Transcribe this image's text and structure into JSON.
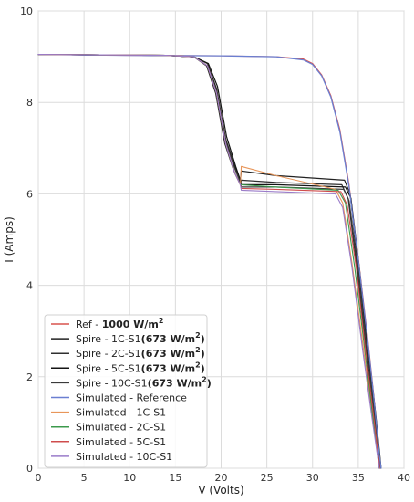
{
  "chart_data": {
    "type": "line",
    "title": "",
    "xlabel": "V (Volts)",
    "ylabel": "I (Amps)",
    "xlim": [
      0,
      40
    ],
    "ylim": [
      0,
      10
    ],
    "xticks": [
      "0",
      "5",
      "10",
      "15",
      "20",
      "25",
      "30",
      "35",
      "40"
    ],
    "yticks": [
      "0",
      "2",
      "4",
      "6",
      "8",
      "10"
    ],
    "grid": true,
    "legend_position": "lower-left",
    "series": [
      {
        "name": "Ref - ",
        "bold": "1000 W/m",
        "sup": "2",
        "color": "#d9534f",
        "width": 1.1,
        "points": [
          [
            0,
            9.05
          ],
          [
            10,
            9.03
          ],
          [
            20,
            9.02
          ],
          [
            26,
            9.0
          ],
          [
            29,
            8.95
          ],
          [
            30,
            8.85
          ],
          [
            31,
            8.6
          ],
          [
            32,
            8.15
          ],
          [
            33,
            7.4
          ],
          [
            34,
            6.2
          ],
          [
            35,
            4.6
          ],
          [
            36,
            2.9
          ],
          [
            36.8,
            1.4
          ],
          [
            37.3,
            0.3
          ],
          [
            37.45,
            0
          ]
        ]
      },
      {
        "name": "Spire - 1C-S1",
        "bold": "(673 W/m",
        "sup": "2",
        "bold_end": ")",
        "color": "#222222",
        "width": 1.2,
        "points": [
          [
            0,
            9.05
          ],
          [
            14,
            9.03
          ],
          [
            17,
            9.0
          ],
          [
            18.5,
            8.85
          ],
          [
            19.5,
            8.3
          ],
          [
            20.5,
            7.2
          ],
          [
            21.5,
            6.6
          ],
          [
            22.1,
            6.3
          ],
          [
            22.2,
            6.5
          ],
          [
            26,
            6.4
          ],
          [
            33.5,
            6.3
          ],
          [
            34.1,
            6.0
          ],
          [
            35,
            4.4
          ],
          [
            36,
            2.6
          ],
          [
            36.8,
            1.2
          ],
          [
            37.4,
            0
          ]
        ]
      },
      {
        "name": "Spire - 2C-S1",
        "bold": "(673 W/m",
        "sup": "2",
        "bold_end": ")",
        "color": "#2f2f2f",
        "width": 1.2,
        "points": [
          [
            0,
            9.05
          ],
          [
            14,
            9.03
          ],
          [
            17,
            9.0
          ],
          [
            18.4,
            8.8
          ],
          [
            19.4,
            8.2
          ],
          [
            20.4,
            7.1
          ],
          [
            21.4,
            6.5
          ],
          [
            22.1,
            6.2
          ],
          [
            22.2,
            6.3
          ],
          [
            26,
            6.25
          ],
          [
            33.2,
            6.2
          ],
          [
            33.9,
            5.9
          ],
          [
            34.9,
            4.3
          ],
          [
            35.9,
            2.5
          ],
          [
            36.7,
            1.1
          ],
          [
            37.3,
            0
          ]
        ]
      },
      {
        "name": "Spire - 5C-S1",
        "bold": "(673 W/m",
        "sup": "2",
        "bold_end": ")",
        "color": "#141414",
        "width": 1.2,
        "points": [
          [
            0,
            9.05
          ],
          [
            14,
            9.03
          ],
          [
            17,
            9.0
          ],
          [
            18.6,
            8.85
          ],
          [
            19.6,
            8.35
          ],
          [
            20.6,
            7.25
          ],
          [
            21.6,
            6.6
          ],
          [
            22.1,
            6.3
          ],
          [
            22.2,
            6.2
          ],
          [
            26,
            6.2
          ],
          [
            33.6,
            6.15
          ],
          [
            34.2,
            5.9
          ],
          [
            35.1,
            4.4
          ],
          [
            36.1,
            2.6
          ],
          [
            36.9,
            1.2
          ],
          [
            37.5,
            0
          ]
        ]
      },
      {
        "name": "Spire - 10C-S1",
        "bold": "(673 W/m",
        "sup": "2",
        "bold_end": ")",
        "color": "#3a3a3a",
        "width": 1.2,
        "points": [
          [
            0,
            9.05
          ],
          [
            14,
            9.03
          ],
          [
            17,
            9.0
          ],
          [
            18.5,
            8.8
          ],
          [
            19.5,
            8.25
          ],
          [
            20.5,
            7.15
          ],
          [
            21.5,
            6.55
          ],
          [
            22.1,
            6.25
          ],
          [
            22.2,
            6.15
          ],
          [
            26,
            6.15
          ],
          [
            33.4,
            6.1
          ],
          [
            34.0,
            5.85
          ],
          [
            35.0,
            4.3
          ],
          [
            36.0,
            2.5
          ],
          [
            36.8,
            1.1
          ],
          [
            37.4,
            0
          ]
        ]
      },
      {
        "name": "Simulated - Reference",
        "color": "#6a7fd1",
        "width": 1.3,
        "points": [
          [
            0,
            9.05
          ],
          [
            10,
            9.03
          ],
          [
            20,
            9.02
          ],
          [
            26,
            9.0
          ],
          [
            29,
            8.93
          ],
          [
            30,
            8.83
          ],
          [
            31,
            8.58
          ],
          [
            32,
            8.12
          ],
          [
            33,
            7.35
          ],
          [
            34,
            6.15
          ],
          [
            35,
            4.55
          ],
          [
            36,
            2.85
          ],
          [
            36.8,
            1.35
          ],
          [
            37.3,
            0.3
          ],
          [
            37.5,
            0
          ]
        ]
      },
      {
        "name": "Simulated - 1C-S1",
        "color": "#e8965a",
        "width": 1.1,
        "points": [
          [
            0,
            9.05
          ],
          [
            14,
            9.03
          ],
          [
            17,
            9.0
          ],
          [
            18.5,
            8.8
          ],
          [
            19.5,
            8.2
          ],
          [
            20.5,
            7.1
          ],
          [
            21.5,
            6.45
          ],
          [
            22.1,
            6.2
          ],
          [
            22.2,
            6.6
          ],
          [
            26,
            6.4
          ],
          [
            32.5,
            6.1
          ],
          [
            33.3,
            5.8
          ],
          [
            34.3,
            4.5
          ],
          [
            35.5,
            2.7
          ],
          [
            36.5,
            1.2
          ],
          [
            37.3,
            0
          ]
        ]
      },
      {
        "name": "Simulated - 2C-S1",
        "color": "#3c9a4c",
        "width": 1.1,
        "points": [
          [
            0,
            9.05
          ],
          [
            14,
            9.03
          ],
          [
            17,
            9.0
          ],
          [
            18.5,
            8.8
          ],
          [
            19.5,
            8.2
          ],
          [
            20.5,
            7.1
          ],
          [
            21.5,
            6.45
          ],
          [
            22.1,
            6.2
          ],
          [
            22.2,
            6.2
          ],
          [
            26,
            6.15
          ],
          [
            32.8,
            6.08
          ],
          [
            33.6,
            5.8
          ],
          [
            34.6,
            4.4
          ],
          [
            35.7,
            2.6
          ],
          [
            36.6,
            1.1
          ],
          [
            37.3,
            0
          ]
        ]
      },
      {
        "name": "Simulated - 5C-S1",
        "color": "#cf4c4c",
        "width": 1.1,
        "points": [
          [
            0,
            9.05
          ],
          [
            14,
            9.03
          ],
          [
            17,
            9.0
          ],
          [
            18.5,
            8.8
          ],
          [
            19.5,
            8.2
          ],
          [
            20.5,
            7.1
          ],
          [
            21.5,
            6.45
          ],
          [
            22.1,
            6.2
          ],
          [
            22.2,
            6.12
          ],
          [
            26,
            6.1
          ],
          [
            33.1,
            6.05
          ],
          [
            33.8,
            5.75
          ],
          [
            34.8,
            4.35
          ],
          [
            35.8,
            2.55
          ],
          [
            36.7,
            1.1
          ],
          [
            37.35,
            0
          ]
        ]
      },
      {
        "name": "Simulated - 10C-S1",
        "color": "#9a7cc9",
        "width": 1.1,
        "points": [
          [
            0,
            9.05
          ],
          [
            14,
            9.03
          ],
          [
            17,
            9.0
          ],
          [
            18.5,
            8.8
          ],
          [
            19.5,
            8.2
          ],
          [
            20.5,
            7.1
          ],
          [
            21.5,
            6.45
          ],
          [
            22.1,
            6.2
          ],
          [
            22.2,
            6.08
          ],
          [
            26,
            6.05
          ],
          [
            32.5,
            6.0
          ],
          [
            33.3,
            5.7
          ],
          [
            34.3,
            4.4
          ],
          [
            35.5,
            2.55
          ],
          [
            36.5,
            1.1
          ],
          [
            37.3,
            0
          ]
        ]
      }
    ]
  }
}
